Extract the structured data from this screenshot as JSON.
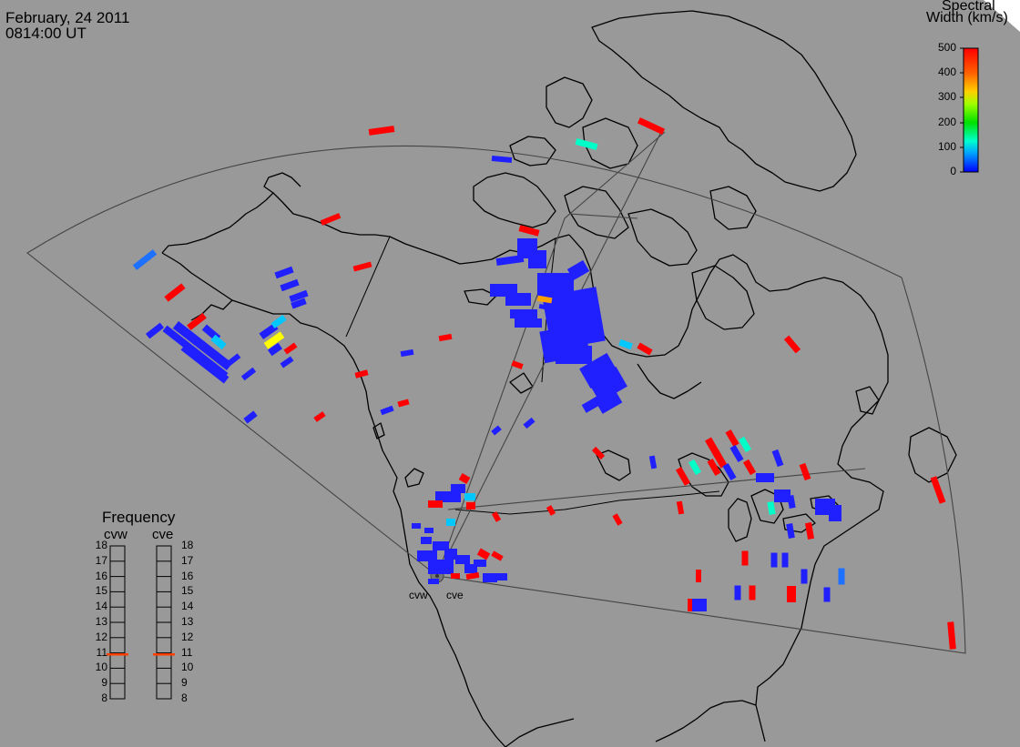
{
  "header": {
    "date": "February, 24 2011",
    "time": "0814:00 UT"
  },
  "colorbar": {
    "title_line1": "Spectral",
    "title_line2": "Width (km/s)",
    "ticks": [
      "500",
      "400",
      "300",
      "200",
      "100",
      "0"
    ],
    "range": [
      0,
      500
    ],
    "colors": [
      "#0000ff",
      "#00b4ff",
      "#00ffc8",
      "#00e000",
      "#c8ff00",
      "#ffc000",
      "#ff6000",
      "#ff0000"
    ]
  },
  "frequency_panel": {
    "title": "Frequency",
    "left_label": "cvw",
    "right_label": "cve",
    "ticks": [
      "18",
      "17",
      "16",
      "15",
      "14",
      "13",
      "12",
      "11",
      "10",
      "9",
      "8"
    ],
    "cvw_frequency_mhz": 10.9,
    "cve_frequency_mhz": 10.9,
    "indicator_color": "#ff4000"
  },
  "radars": {
    "west_label": "cvw",
    "east_label": "cve"
  },
  "colors": {
    "background": "#999999",
    "coastline": "#000000",
    "fov_outline": "#444444",
    "low_width": "#2020ff",
    "high_width": "#ff0000"
  }
}
